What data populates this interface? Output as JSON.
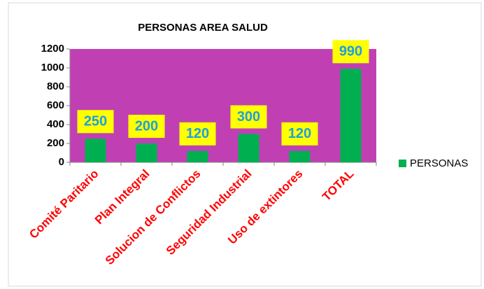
{
  "chart_data": {
    "type": "bar",
    "title": "PERSONAS AREA SALUD",
    "categories": [
      "Comité Paritario",
      "Plan Integral",
      "Solucion de Conflictos",
      "Seguridad Industrial",
      "Uso de extintores",
      "TOTAL"
    ],
    "series": [
      {
        "name": "PERSONAS",
        "color": "#00b050",
        "values": [
          250,
          200,
          120,
          300,
          120,
          990
        ]
      }
    ],
    "ylim": [
      0,
      1200
    ],
    "yticks": [
      0,
      200,
      400,
      600,
      800,
      1000,
      1200
    ],
    "grid": false,
    "legend": "right",
    "plot_color": "#c040b4",
    "label_box_color": "#ffff00",
    "label_color": "#1f9ee0",
    "category_color": "#ff0000"
  }
}
